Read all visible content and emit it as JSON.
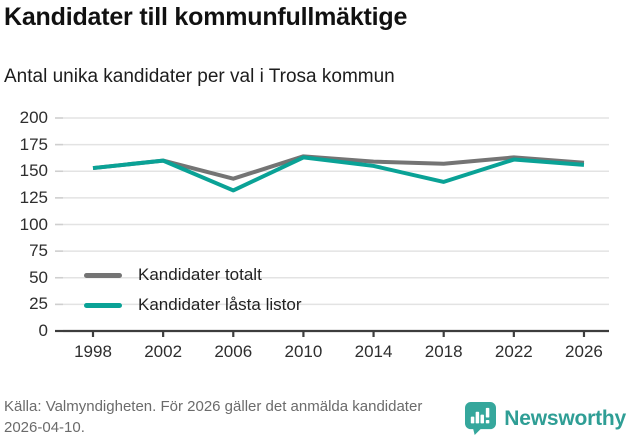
{
  "header": {
    "title": "Kandidater till kommunfullmäktige",
    "subtitle": "Antal unika kandidater per val i Trosa kommun"
  },
  "chart_data": {
    "type": "line",
    "x": [
      1998,
      2002,
      2006,
      2010,
      2014,
      2018,
      2022,
      2026
    ],
    "series": [
      {
        "name": "Kandidater totalt",
        "color": "#747474",
        "values": [
          153,
          160,
          143,
          164,
          159,
          157,
          163,
          158
        ]
      },
      {
        "name": "Kandidater låsta listor",
        "color": "#0aa296",
        "values": [
          153,
          160,
          132,
          163,
          155,
          140,
          161,
          156
        ]
      }
    ],
    "ylim": [
      0,
      200
    ],
    "yticks": [
      0,
      25,
      50,
      75,
      100,
      125,
      150,
      175,
      200
    ],
    "grid": "horizontal",
    "legend_position": "inside-bottom-left",
    "title": "Kandidater till kommunfullmäktige",
    "subtitle": "Antal unika kandidater per val i Trosa kommun",
    "xlabel": "",
    "ylabel": ""
  },
  "footer": {
    "source_text": "Källa: Valmyndigheten. För 2026 gäller det anmälda kandidater 2026-04-10.",
    "brand": "Newsworthy"
  },
  "colors": {
    "accent_teal": "#0aa296",
    "series_gray": "#747474",
    "grid": "#e3e3e3",
    "axis": "#3d3d3d",
    "tick_text": "#2e2e2e",
    "footer_text": "#6b6b6b",
    "logo_teal": "#2f9e95"
  }
}
